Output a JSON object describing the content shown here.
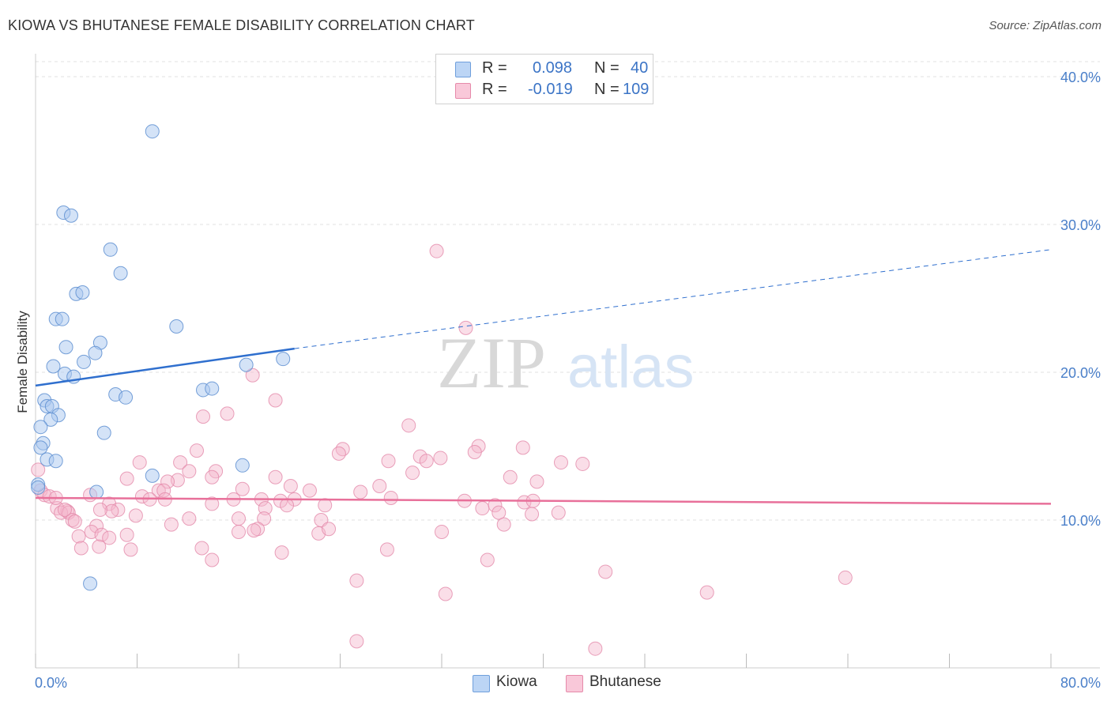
{
  "title": "KIOWA VS BHUTANESE FEMALE DISABILITY CORRELATION CHART",
  "source": "Source: ZipAtlas.com",
  "watermark": {
    "zip": "ZIP",
    "atlas": "atlas"
  },
  "legend": {
    "kiowa": {
      "r_label": "R =",
      "r_value": "0.098",
      "n_label": "N =",
      "n_value": "40"
    },
    "bhutanese": {
      "r_label": "R =",
      "r_value": "-0.019",
      "n_label": "N =",
      "n_value": "109"
    }
  },
  "chart_data": {
    "type": "scatter",
    "title": "KIOWA VS BHUTANESE FEMALE DISABILITY CORRELATION CHART",
    "xlabel": "",
    "ylabel": "Female Disability",
    "xlim": [
      0,
      80
    ],
    "ylim": [
      0,
      40
    ],
    "x_tick_labels": [
      "0.0%",
      "80.0%"
    ],
    "y_tick_labels": [
      "10.0%",
      "20.0%",
      "30.0%",
      "40.0%"
    ],
    "y_tick_values": [
      10,
      20,
      30,
      40
    ],
    "colors": {
      "kiowa": "#a9c8f0",
      "kiowa_line": "#2f6fce",
      "bhutanese": "#f5b6cc",
      "bhutanese_line": "#e8709a"
    },
    "series": [
      {
        "name": "Kiowa",
        "r": 0.098,
        "n": 40,
        "trend": {
          "x": [
            0,
            20.4
          ],
          "y": [
            19.1,
            21.6
          ],
          "dashed_to": [
            80,
            28.3
          ]
        },
        "points": [
          [
            9.2,
            36.3
          ],
          [
            2.2,
            30.8
          ],
          [
            2.8,
            30.6
          ],
          [
            5.9,
            28.3
          ],
          [
            6.7,
            26.7
          ],
          [
            3.2,
            25.3
          ],
          [
            3.7,
            25.4
          ],
          [
            1.6,
            23.6
          ],
          [
            2.1,
            23.6
          ],
          [
            11.1,
            23.1
          ],
          [
            2.4,
            21.7
          ],
          [
            5.1,
            22.0
          ],
          [
            4.7,
            21.3
          ],
          [
            3.8,
            20.7
          ],
          [
            1.4,
            20.4
          ],
          [
            16.6,
            20.5
          ],
          [
            19.5,
            20.9
          ],
          [
            2.3,
            19.9
          ],
          [
            3.0,
            19.7
          ],
          [
            6.3,
            18.5
          ],
          [
            7.1,
            18.3
          ],
          [
            13.2,
            18.8
          ],
          [
            13.9,
            18.9
          ],
          [
            0.7,
            18.1
          ],
          [
            0.9,
            17.7
          ],
          [
            1.3,
            17.7
          ],
          [
            1.8,
            17.1
          ],
          [
            1.2,
            16.8
          ],
          [
            0.4,
            16.3
          ],
          [
            5.4,
            15.9
          ],
          [
            0.6,
            15.2
          ],
          [
            0.4,
            14.9
          ],
          [
            0.9,
            14.1
          ],
          [
            1.6,
            14.0
          ],
          [
            16.3,
            13.7
          ],
          [
            9.2,
            13.0
          ],
          [
            0.2,
            12.4
          ],
          [
            4.8,
            11.9
          ],
          [
            4.3,
            5.7
          ],
          [
            0.2,
            12.2
          ]
        ]
      },
      {
        "name": "Bhutanese",
        "r": -0.019,
        "n": 109,
        "trend": {
          "x": [
            0,
            80
          ],
          "y": [
            11.5,
            11.1
          ]
        },
        "points": [
          [
            31.6,
            28.2
          ],
          [
            33.9,
            23.0
          ],
          [
            17.1,
            19.8
          ],
          [
            18.9,
            18.1
          ],
          [
            15.1,
            17.2
          ],
          [
            13.2,
            17.0
          ],
          [
            29.4,
            16.4
          ],
          [
            34.9,
            15.0
          ],
          [
            38.4,
            14.9
          ],
          [
            12.7,
            14.7
          ],
          [
            24.2,
            14.8
          ],
          [
            23.9,
            14.5
          ],
          [
            34.6,
            14.6
          ],
          [
            30.3,
            14.3
          ],
          [
            30.8,
            14.0
          ],
          [
            31.9,
            14.2
          ],
          [
            41.4,
            13.9
          ],
          [
            27.8,
            14.0
          ],
          [
            8.2,
            13.9
          ],
          [
            11.4,
            13.9
          ],
          [
            43.1,
            13.8
          ],
          [
            14.2,
            13.3
          ],
          [
            29.7,
            13.2
          ],
          [
            12.1,
            13.3
          ],
          [
            7.2,
            12.8
          ],
          [
            13.9,
            12.9
          ],
          [
            18.9,
            12.9
          ],
          [
            37.4,
            12.9
          ],
          [
            11.2,
            12.7
          ],
          [
            39.5,
            12.6
          ],
          [
            10.4,
            12.6
          ],
          [
            27.1,
            12.3
          ],
          [
            20.1,
            12.3
          ],
          [
            9.7,
            12.0
          ],
          [
            10.1,
            12.0
          ],
          [
            16.3,
            12.1
          ],
          [
            21.6,
            12.0
          ],
          [
            4.3,
            11.7
          ],
          [
            8.4,
            11.6
          ],
          [
            9.0,
            11.4
          ],
          [
            10.2,
            11.4
          ],
          [
            15.6,
            11.4
          ],
          [
            17.8,
            11.4
          ],
          [
            19.3,
            11.3
          ],
          [
            20.4,
            11.4
          ],
          [
            28.0,
            11.5
          ],
          [
            33.8,
            11.3
          ],
          [
            36.2,
            11.0
          ],
          [
            38.5,
            11.2
          ],
          [
            39.2,
            11.3
          ],
          [
            5.8,
            11.1
          ],
          [
            13.9,
            11.1
          ],
          [
            22.8,
            11.0
          ],
          [
            19.8,
            11.0
          ],
          [
            35.2,
            10.8
          ],
          [
            6.5,
            10.7
          ],
          [
            6.0,
            10.6
          ],
          [
            18.1,
            10.8
          ],
          [
            2.5,
            10.6
          ],
          [
            1.7,
            10.8
          ],
          [
            2.0,
            10.5
          ],
          [
            2.6,
            10.5
          ],
          [
            36.5,
            10.5
          ],
          [
            5.1,
            10.7
          ],
          [
            7.9,
            10.3
          ],
          [
            12.1,
            10.1
          ],
          [
            16.0,
            10.1
          ],
          [
            18.0,
            10.1
          ],
          [
            22.5,
            10.0
          ],
          [
            39.1,
            10.4
          ],
          [
            41.2,
            10.5
          ],
          [
            2.9,
            10.0
          ],
          [
            3.1,
            9.9
          ],
          [
            10.7,
            9.7
          ],
          [
            4.8,
            9.6
          ],
          [
            17.5,
            9.4
          ],
          [
            16.0,
            9.2
          ],
          [
            17.2,
            9.3
          ],
          [
            22.3,
            9.1
          ],
          [
            23.1,
            9.4
          ],
          [
            4.4,
            9.2
          ],
          [
            5.2,
            9.0
          ],
          [
            5.8,
            8.8
          ],
          [
            32.0,
            9.2
          ],
          [
            36.9,
            9.7
          ],
          [
            3.4,
            8.9
          ],
          [
            7.2,
            9.0
          ],
          [
            5.0,
            8.2
          ],
          [
            3.6,
            8.1
          ],
          [
            7.5,
            8.0
          ],
          [
            13.1,
            8.1
          ],
          [
            27.7,
            8.0
          ],
          [
            19.4,
            7.8
          ],
          [
            13.9,
            7.3
          ],
          [
            35.6,
            7.3
          ],
          [
            44.9,
            6.5
          ],
          [
            63.8,
            6.1
          ],
          [
            25.3,
            5.9
          ],
          [
            32.3,
            5.0
          ],
          [
            52.9,
            5.1
          ],
          [
            25.3,
            1.8
          ],
          [
            44.1,
            1.3
          ],
          [
            0.4,
            12.0
          ],
          [
            0.7,
            11.7
          ],
          [
            1.1,
            11.6
          ],
          [
            2.3,
            10.7
          ],
          [
            1.6,
            11.5
          ],
          [
            25.6,
            11.9
          ],
          [
            0.2,
            13.4
          ]
        ]
      }
    ]
  },
  "bottom_legend": {
    "kiowa": "Kiowa",
    "bhutanese": "Bhutanese"
  }
}
